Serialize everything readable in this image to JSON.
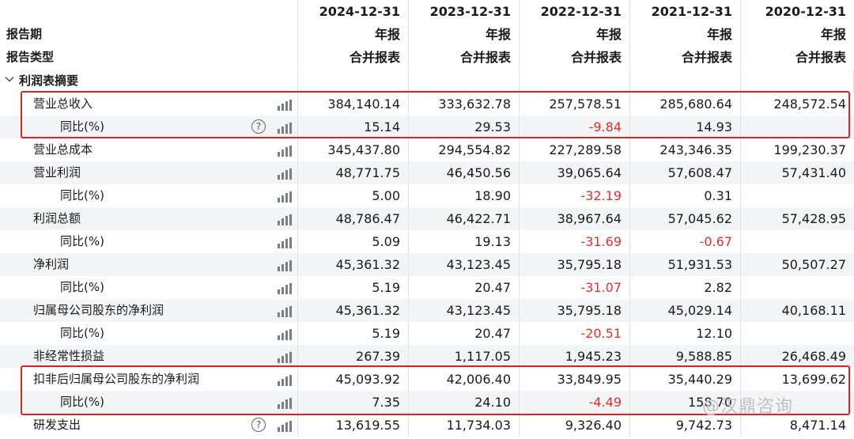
{
  "header": {
    "dates": [
      "2024-12-31",
      "2023-12-31",
      "2022-12-31",
      "2021-12-31",
      "2020-12-31"
    ],
    "period_label": "报告期",
    "period_values": [
      "年报",
      "年报",
      "年报",
      "年报",
      "年报"
    ],
    "type_label": "报告类型",
    "type_values": [
      "合并报表",
      "合并报表",
      "合并报表",
      "合并报表",
      "合并报表"
    ]
  },
  "section": {
    "title": "利润表摘要"
  },
  "rows": [
    {
      "label": "营业总收入",
      "indent": 1,
      "help": false,
      "values": [
        "384,140.14",
        "333,632.78",
        "257,578.51",
        "285,680.64",
        "248,572.54"
      ]
    },
    {
      "label": "同比(%)",
      "indent": 2,
      "help": true,
      "values": [
        "15.14",
        "29.53",
        "-9.84",
        "14.93",
        ""
      ]
    },
    {
      "label": "营业总成本",
      "indent": 1,
      "help": false,
      "values": [
        "345,437.80",
        "294,554.82",
        "227,289.58",
        "243,346.35",
        "199,230.37"
      ]
    },
    {
      "label": "营业利润",
      "indent": 1,
      "help": false,
      "values": [
        "48,771.75",
        "46,450.56",
        "39,065.64",
        "57,608.47",
        "57,431.40"
      ]
    },
    {
      "label": "同比(%)",
      "indent": 2,
      "help": false,
      "values": [
        "5.00",
        "18.90",
        "-32.19",
        "0.31",
        ""
      ]
    },
    {
      "label": "利润总额",
      "indent": 1,
      "help": false,
      "values": [
        "48,786.47",
        "46,422.71",
        "38,967.64",
        "57,045.62",
        "57,428.95"
      ]
    },
    {
      "label": "同比(%)",
      "indent": 2,
      "help": false,
      "values": [
        "5.09",
        "19.13",
        "-31.69",
        "-0.67",
        ""
      ]
    },
    {
      "label": "净利润",
      "indent": 1,
      "help": false,
      "values": [
        "45,361.32",
        "43,123.45",
        "35,795.18",
        "51,931.53",
        "50,507.27"
      ]
    },
    {
      "label": "同比(%)",
      "indent": 2,
      "help": false,
      "values": [
        "5.19",
        "20.47",
        "-31.07",
        "2.82",
        ""
      ]
    },
    {
      "label": "归属母公司股东的净利润",
      "indent": 1,
      "help": false,
      "values": [
        "45,361.32",
        "43,123.45",
        "35,795.18",
        "45,029.14",
        "40,168.11"
      ]
    },
    {
      "label": "同比(%)",
      "indent": 2,
      "help": false,
      "values": [
        "5.19",
        "20.47",
        "-20.51",
        "12.10",
        ""
      ]
    },
    {
      "label": "非经常性损益",
      "indent": 1,
      "help": false,
      "values": [
        "267.39",
        "1,117.05",
        "1,945.23",
        "9,588.85",
        "26,468.49"
      ]
    },
    {
      "label": "扣非后归属母公司股东的净利润",
      "indent": 1,
      "help": false,
      "values": [
        "45,093.92",
        "42,006.40",
        "33,849.95",
        "35,440.29",
        "13,699.62"
      ]
    },
    {
      "label": "同比(%)",
      "indent": 2,
      "help": false,
      "values": [
        "7.35",
        "24.10",
        "-4.49",
        "158.70",
        ""
      ]
    },
    {
      "label": "研发支出",
      "indent": 1,
      "help": true,
      "values": [
        "13,619.55",
        "11,734.03",
        "9,326.40",
        "9,742.73",
        "8,471.14"
      ]
    }
  ],
  "watermark": "@汉鼎咨询",
  "colors": {
    "negative": "#e02f2f",
    "highlight_box": "#d3262b",
    "row_alt": "#f3f4f6"
  }
}
